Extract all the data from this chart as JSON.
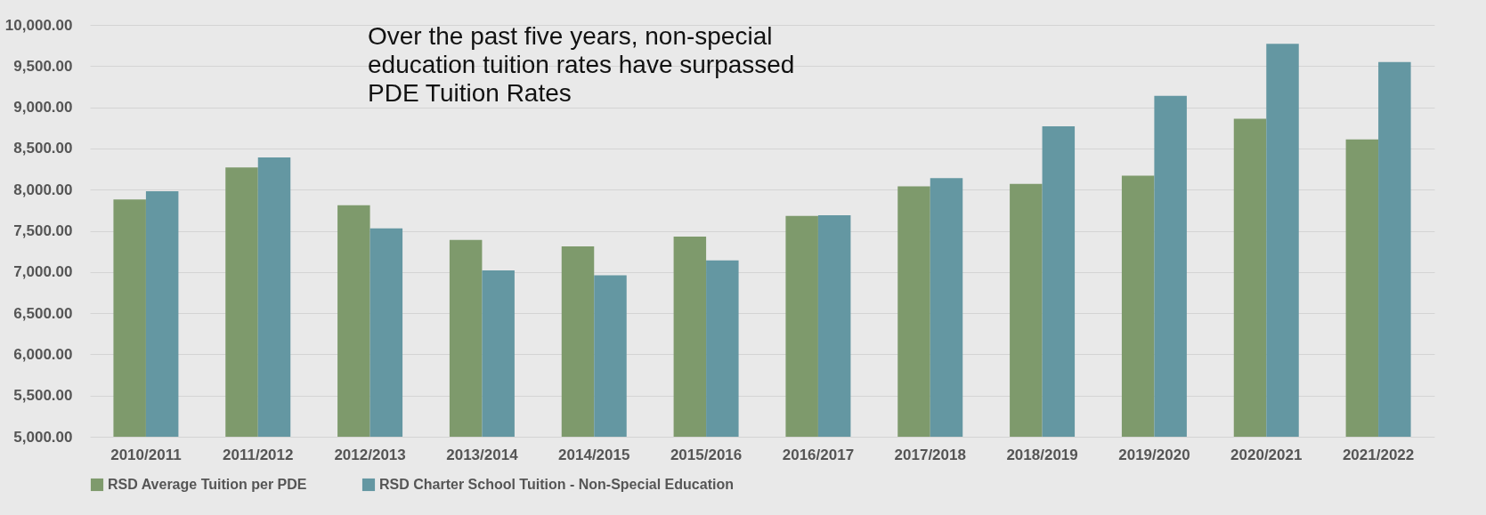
{
  "chart_data": {
    "type": "bar",
    "categories": [
      "2010/2011",
      "2011/2012",
      "2012/2013",
      "2013/2014",
      "2014/2015",
      "2015/2016",
      "2016/2017",
      "2017/2018",
      "2018/2019",
      "2019/2020",
      "2020/2021",
      "2021/2022"
    ],
    "series": [
      {
        "name": "RSD Average Tuition per PDE",
        "color": "#7e9a6c",
        "values": [
          7880,
          8270,
          7810,
          7390,
          7310,
          7430,
          7680,
          8040,
          8070,
          8170,
          8860,
          8610
        ]
      },
      {
        "name": "RSD Charter School Tuition - Non-Special Education",
        "color": "#6497a2",
        "values": [
          7980,
          8390,
          7530,
          7020,
          6960,
          7140,
          7690,
          8140,
          8770,
          9140,
          9770,
          9550
        ]
      }
    ],
    "ylim": [
      5000,
      10000
    ],
    "yticks": [
      {
        "value": 5000,
        "label": "5,000.00"
      },
      {
        "value": 5500,
        "label": "5,500.00"
      },
      {
        "value": 6000,
        "label": "6,000.00"
      },
      {
        "value": 6500,
        "label": "6,500.00"
      },
      {
        "value": 7000,
        "label": "7,000.00"
      },
      {
        "value": 7500,
        "label": "7,500.00"
      },
      {
        "value": 8000,
        "label": "8,000.00"
      },
      {
        "value": 8500,
        "label": "8,500.00"
      },
      {
        "value": 9000,
        "label": "9,000.00"
      },
      {
        "value": 9500,
        "label": "9,500.00"
      },
      {
        "value": 10000,
        "label": "10,000.00"
      }
    ],
    "annotations": [
      "Over the past five years, non-special education tuition rates have surpassed PDE Tuition Rates"
    ],
    "grid": "y",
    "legend": "bottom"
  }
}
